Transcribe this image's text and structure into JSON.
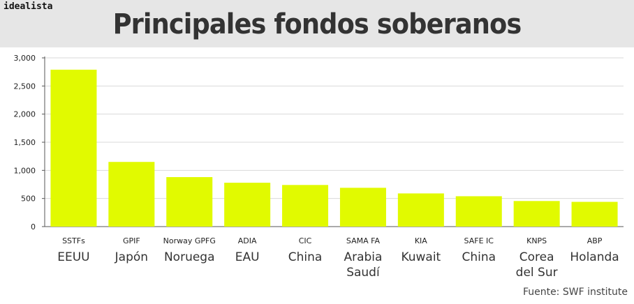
{
  "header": {
    "logo": "idealista",
    "title": "Principales fondos soberanos"
  },
  "source": "Fuente: SWF institute",
  "colors": {
    "bar": "#e1fa00",
    "header_bg": "#e6e6e6",
    "grid": "#d9d9d9"
  },
  "chart_data": {
    "type": "bar",
    "title": "Principales fondos soberanos",
    "xlabel": "",
    "ylabel": "",
    "ylim": [
      0,
      3000
    ],
    "yticks": [
      0,
      500,
      1000,
      1500,
      2000,
      2500,
      3000
    ],
    "ytick_labels": [
      "0",
      "500",
      "1,000",
      "1,500",
      "2,000",
      "2,500",
      "3,000"
    ],
    "grid": true,
    "categories": [
      "SSTFs",
      "GPIF",
      "Norway GPFG",
      "ADIA",
      "CIC",
      "SAMA FA",
      "KIA",
      "SAFE IC",
      "KNPS",
      "ABP"
    ],
    "countries": [
      [
        "EEUU"
      ],
      [
        "Japón"
      ],
      [
        "Noruega"
      ],
      [
        "EAU"
      ],
      [
        "China"
      ],
      [
        "Arabia",
        "Saudí"
      ],
      [
        "Kuwait"
      ],
      [
        "China"
      ],
      [
        "Corea",
        "del Sur"
      ],
      [
        "Holanda"
      ]
    ],
    "values": [
      2790,
      1150,
      880,
      780,
      740,
      690,
      590,
      540,
      455,
      440
    ]
  }
}
